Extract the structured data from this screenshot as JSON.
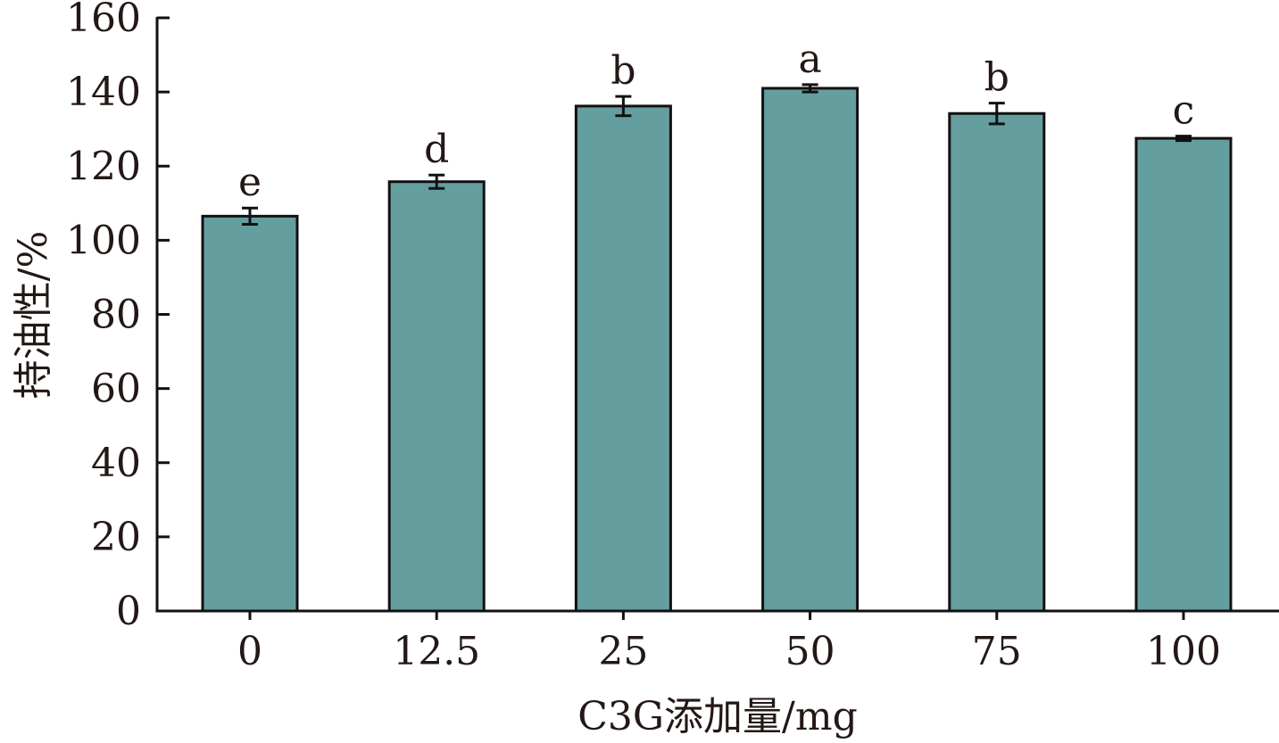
{
  "chart_data": {
    "type": "bar",
    "title": "",
    "xlabel": "C3G添加量/mg",
    "ylabel": "持油性/%",
    "categories": [
      "0",
      "12.5",
      "25",
      "50",
      "75",
      "100"
    ],
    "values": [
      106.5,
      115.8,
      136.2,
      141.0,
      134.2,
      127.5
    ],
    "errors": [
      2.2,
      1.8,
      2.6,
      1.0,
      2.8,
      0.6
    ],
    "significance": [
      "e",
      "d",
      "b",
      "a",
      "b",
      "c"
    ],
    "ylim": [
      0,
      160
    ],
    "yticks": [
      0,
      20,
      40,
      60,
      80,
      100,
      120,
      140,
      160
    ],
    "bar_color": "#659e9e",
    "outline_color": "#111111",
    "grid": false,
    "legend": false
  }
}
